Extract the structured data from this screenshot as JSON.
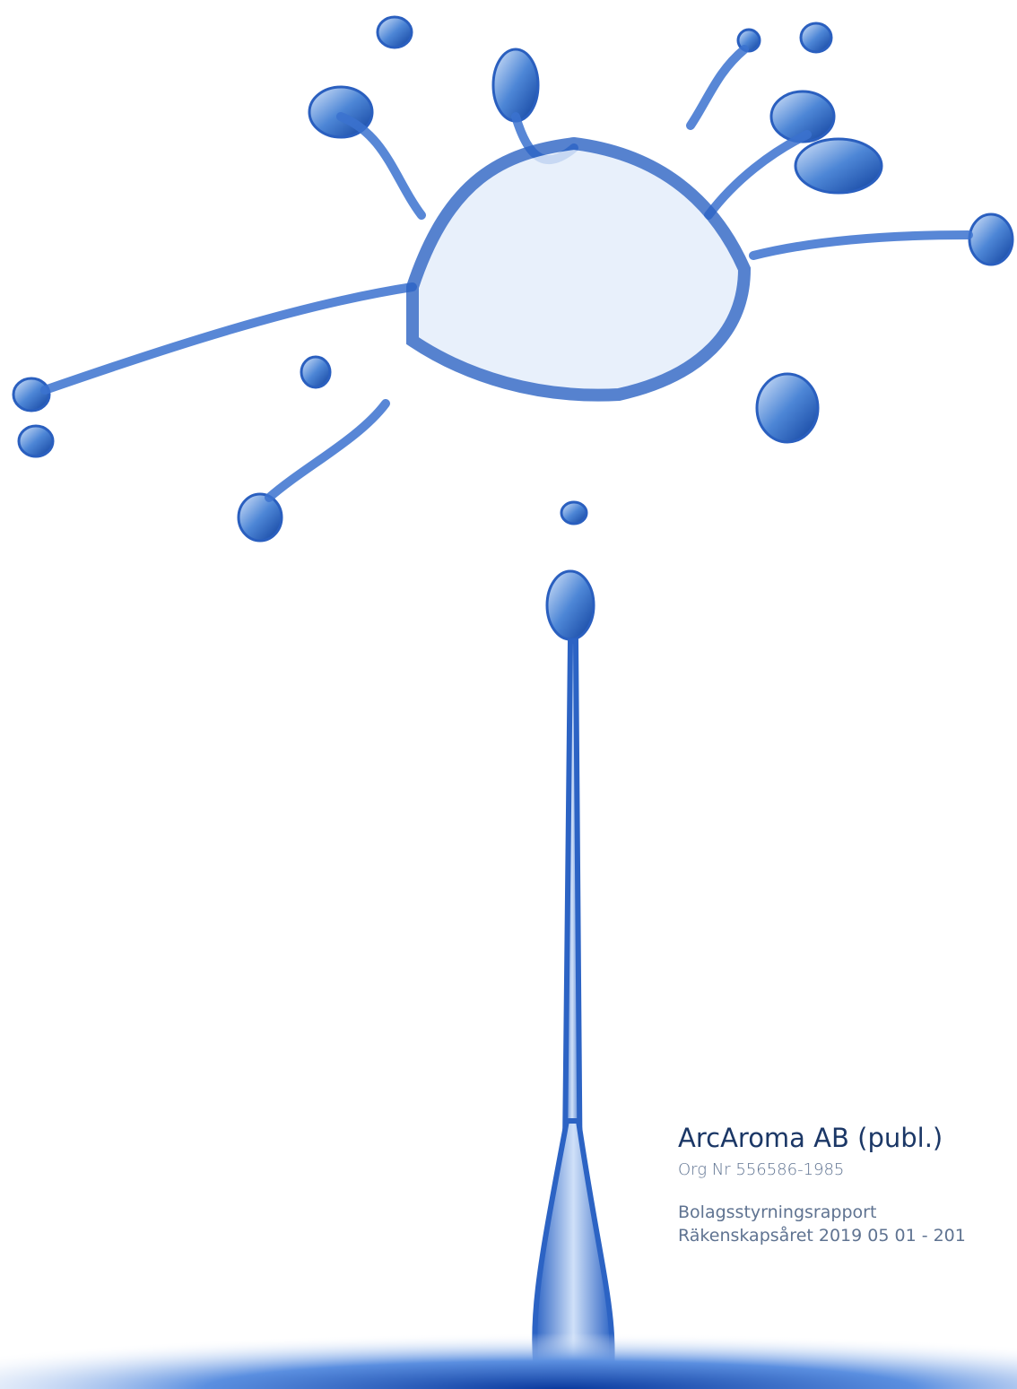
{
  "cover": {
    "company": "ArcAroma AB (publ.)",
    "org_number": "Org Nr 556586-1985",
    "report_title": "Bolagsstyrningsrapport",
    "fiscal_period": "Räkenskapsåret 2019 05 01 - 201"
  }
}
